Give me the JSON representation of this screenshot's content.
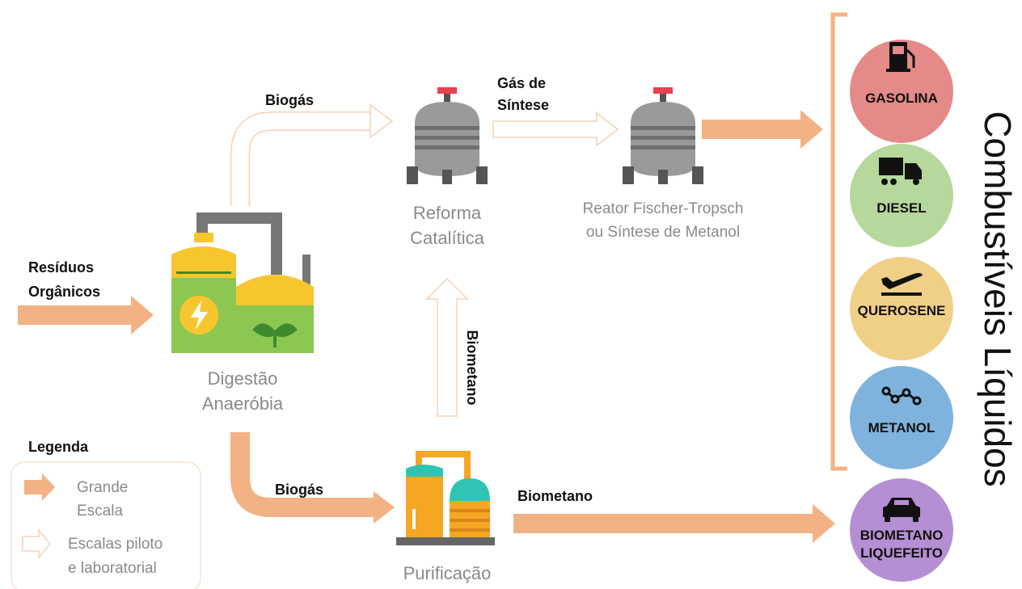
{
  "nodes": [
    {
      "label": [
        "Digestão",
        "Anaeróbia"
      ]
    },
    {
      "label": [
        "Reforma",
        "Catalítica"
      ]
    },
    {
      "label": [
        "Reator Fischer-Tropsch",
        "ou Síntese de Metanol"
      ]
    },
    {
      "label": [
        "Purificação"
      ]
    }
  ],
  "flows": [
    {
      "label": [
        "Resíduos",
        "Orgânicos"
      ]
    },
    {
      "label": [
        "Biogás"
      ]
    },
    {
      "label": [
        "Gás de",
        "Síntese"
      ]
    },
    {
      "label": [
        "Biometano"
      ]
    },
    {
      "label": [
        "Biogás"
      ]
    },
    {
      "label": [
        "Biometano"
      ]
    }
  ],
  "products": {
    "title": "Combustíveis Líquidos",
    "items": [
      {
        "label": [
          "GASOLINA"
        ]
      },
      {
        "label": [
          "DIESEL"
        ]
      },
      {
        "label": [
          "QUEROSENE"
        ]
      },
      {
        "label": [
          "METANOL"
        ]
      },
      {
        "label": [
          "BIOMETANO",
          "LIQUEFEITO"
        ]
      }
    ]
  },
  "legend": {
    "title": "Legenda",
    "items": [
      {
        "label": [
          "Grande",
          "Escala"
        ]
      },
      {
        "label": [
          "Escalas piloto",
          "e laboratorial"
        ]
      }
    ]
  }
}
